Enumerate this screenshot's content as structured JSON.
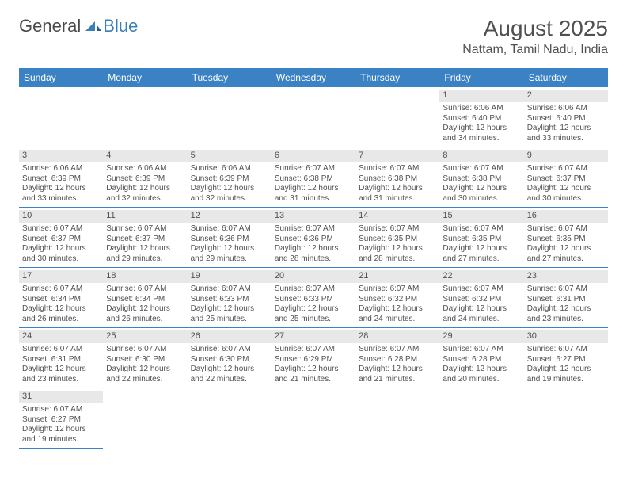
{
  "brand": {
    "part1": "General",
    "part2": "Blue"
  },
  "title": "August 2025",
  "location": "Nattam, Tamil Nadu, India",
  "colors": {
    "header_bg": "#3a82c4",
    "header_text": "#ffffff",
    "daynum_bg": "#e8e8e8",
    "border": "#3a82c4",
    "text": "#505050",
    "brand_gray": "#4a4a4a",
    "brand_blue": "#3a7fb8",
    "background": "#ffffff"
  },
  "fonts": {
    "family": "Arial",
    "title_size": 28,
    "location_size": 16,
    "weekday_size": 12,
    "cell_size": 10
  },
  "weekdays": [
    "Sunday",
    "Monday",
    "Tuesday",
    "Wednesday",
    "Thursday",
    "Friday",
    "Saturday"
  ],
  "weeks": [
    [
      null,
      null,
      null,
      null,
      null,
      {
        "n": "1",
        "sunrise": "6:06 AM",
        "sunset": "6:40 PM",
        "dl1": "Daylight: 12 hours",
        "dl2": "and 34 minutes."
      },
      {
        "n": "2",
        "sunrise": "6:06 AM",
        "sunset": "6:40 PM",
        "dl1": "Daylight: 12 hours",
        "dl2": "and 33 minutes."
      }
    ],
    [
      {
        "n": "3",
        "sunrise": "6:06 AM",
        "sunset": "6:39 PM",
        "dl1": "Daylight: 12 hours",
        "dl2": "and 33 minutes."
      },
      {
        "n": "4",
        "sunrise": "6:06 AM",
        "sunset": "6:39 PM",
        "dl1": "Daylight: 12 hours",
        "dl2": "and 32 minutes."
      },
      {
        "n": "5",
        "sunrise": "6:06 AM",
        "sunset": "6:39 PM",
        "dl1": "Daylight: 12 hours",
        "dl2": "and 32 minutes."
      },
      {
        "n": "6",
        "sunrise": "6:07 AM",
        "sunset": "6:38 PM",
        "dl1": "Daylight: 12 hours",
        "dl2": "and 31 minutes."
      },
      {
        "n": "7",
        "sunrise": "6:07 AM",
        "sunset": "6:38 PM",
        "dl1": "Daylight: 12 hours",
        "dl2": "and 31 minutes."
      },
      {
        "n": "8",
        "sunrise": "6:07 AM",
        "sunset": "6:38 PM",
        "dl1": "Daylight: 12 hours",
        "dl2": "and 30 minutes."
      },
      {
        "n": "9",
        "sunrise": "6:07 AM",
        "sunset": "6:37 PM",
        "dl1": "Daylight: 12 hours",
        "dl2": "and 30 minutes."
      }
    ],
    [
      {
        "n": "10",
        "sunrise": "6:07 AM",
        "sunset": "6:37 PM",
        "dl1": "Daylight: 12 hours",
        "dl2": "and 30 minutes."
      },
      {
        "n": "11",
        "sunrise": "6:07 AM",
        "sunset": "6:37 PM",
        "dl1": "Daylight: 12 hours",
        "dl2": "and 29 minutes."
      },
      {
        "n": "12",
        "sunrise": "6:07 AM",
        "sunset": "6:36 PM",
        "dl1": "Daylight: 12 hours",
        "dl2": "and 29 minutes."
      },
      {
        "n": "13",
        "sunrise": "6:07 AM",
        "sunset": "6:36 PM",
        "dl1": "Daylight: 12 hours",
        "dl2": "and 28 minutes."
      },
      {
        "n": "14",
        "sunrise": "6:07 AM",
        "sunset": "6:35 PM",
        "dl1": "Daylight: 12 hours",
        "dl2": "and 28 minutes."
      },
      {
        "n": "15",
        "sunrise": "6:07 AM",
        "sunset": "6:35 PM",
        "dl1": "Daylight: 12 hours",
        "dl2": "and 27 minutes."
      },
      {
        "n": "16",
        "sunrise": "6:07 AM",
        "sunset": "6:35 PM",
        "dl1": "Daylight: 12 hours",
        "dl2": "and 27 minutes."
      }
    ],
    [
      {
        "n": "17",
        "sunrise": "6:07 AM",
        "sunset": "6:34 PM",
        "dl1": "Daylight: 12 hours",
        "dl2": "and 26 minutes."
      },
      {
        "n": "18",
        "sunrise": "6:07 AM",
        "sunset": "6:34 PM",
        "dl1": "Daylight: 12 hours",
        "dl2": "and 26 minutes."
      },
      {
        "n": "19",
        "sunrise": "6:07 AM",
        "sunset": "6:33 PM",
        "dl1": "Daylight: 12 hours",
        "dl2": "and 25 minutes."
      },
      {
        "n": "20",
        "sunrise": "6:07 AM",
        "sunset": "6:33 PM",
        "dl1": "Daylight: 12 hours",
        "dl2": "and 25 minutes."
      },
      {
        "n": "21",
        "sunrise": "6:07 AM",
        "sunset": "6:32 PM",
        "dl1": "Daylight: 12 hours",
        "dl2": "and 24 minutes."
      },
      {
        "n": "22",
        "sunrise": "6:07 AM",
        "sunset": "6:32 PM",
        "dl1": "Daylight: 12 hours",
        "dl2": "and 24 minutes."
      },
      {
        "n": "23",
        "sunrise": "6:07 AM",
        "sunset": "6:31 PM",
        "dl1": "Daylight: 12 hours",
        "dl2": "and 23 minutes."
      }
    ],
    [
      {
        "n": "24",
        "sunrise": "6:07 AM",
        "sunset": "6:31 PM",
        "dl1": "Daylight: 12 hours",
        "dl2": "and 23 minutes."
      },
      {
        "n": "25",
        "sunrise": "6:07 AM",
        "sunset": "6:30 PM",
        "dl1": "Daylight: 12 hours",
        "dl2": "and 22 minutes."
      },
      {
        "n": "26",
        "sunrise": "6:07 AM",
        "sunset": "6:30 PM",
        "dl1": "Daylight: 12 hours",
        "dl2": "and 22 minutes."
      },
      {
        "n": "27",
        "sunrise": "6:07 AM",
        "sunset": "6:29 PM",
        "dl1": "Daylight: 12 hours",
        "dl2": "and 21 minutes."
      },
      {
        "n": "28",
        "sunrise": "6:07 AM",
        "sunset": "6:28 PM",
        "dl1": "Daylight: 12 hours",
        "dl2": "and 21 minutes."
      },
      {
        "n": "29",
        "sunrise": "6:07 AM",
        "sunset": "6:28 PM",
        "dl1": "Daylight: 12 hours",
        "dl2": "and 20 minutes."
      },
      {
        "n": "30",
        "sunrise": "6:07 AM",
        "sunset": "6:27 PM",
        "dl1": "Daylight: 12 hours",
        "dl2": "and 19 minutes."
      }
    ],
    [
      {
        "n": "31",
        "sunrise": "6:07 AM",
        "sunset": "6:27 PM",
        "dl1": "Daylight: 12 hours",
        "dl2": "and 19 minutes."
      },
      null,
      null,
      null,
      null,
      null,
      null
    ]
  ],
  "labels": {
    "sunrise": "Sunrise: ",
    "sunset": "Sunset: "
  }
}
